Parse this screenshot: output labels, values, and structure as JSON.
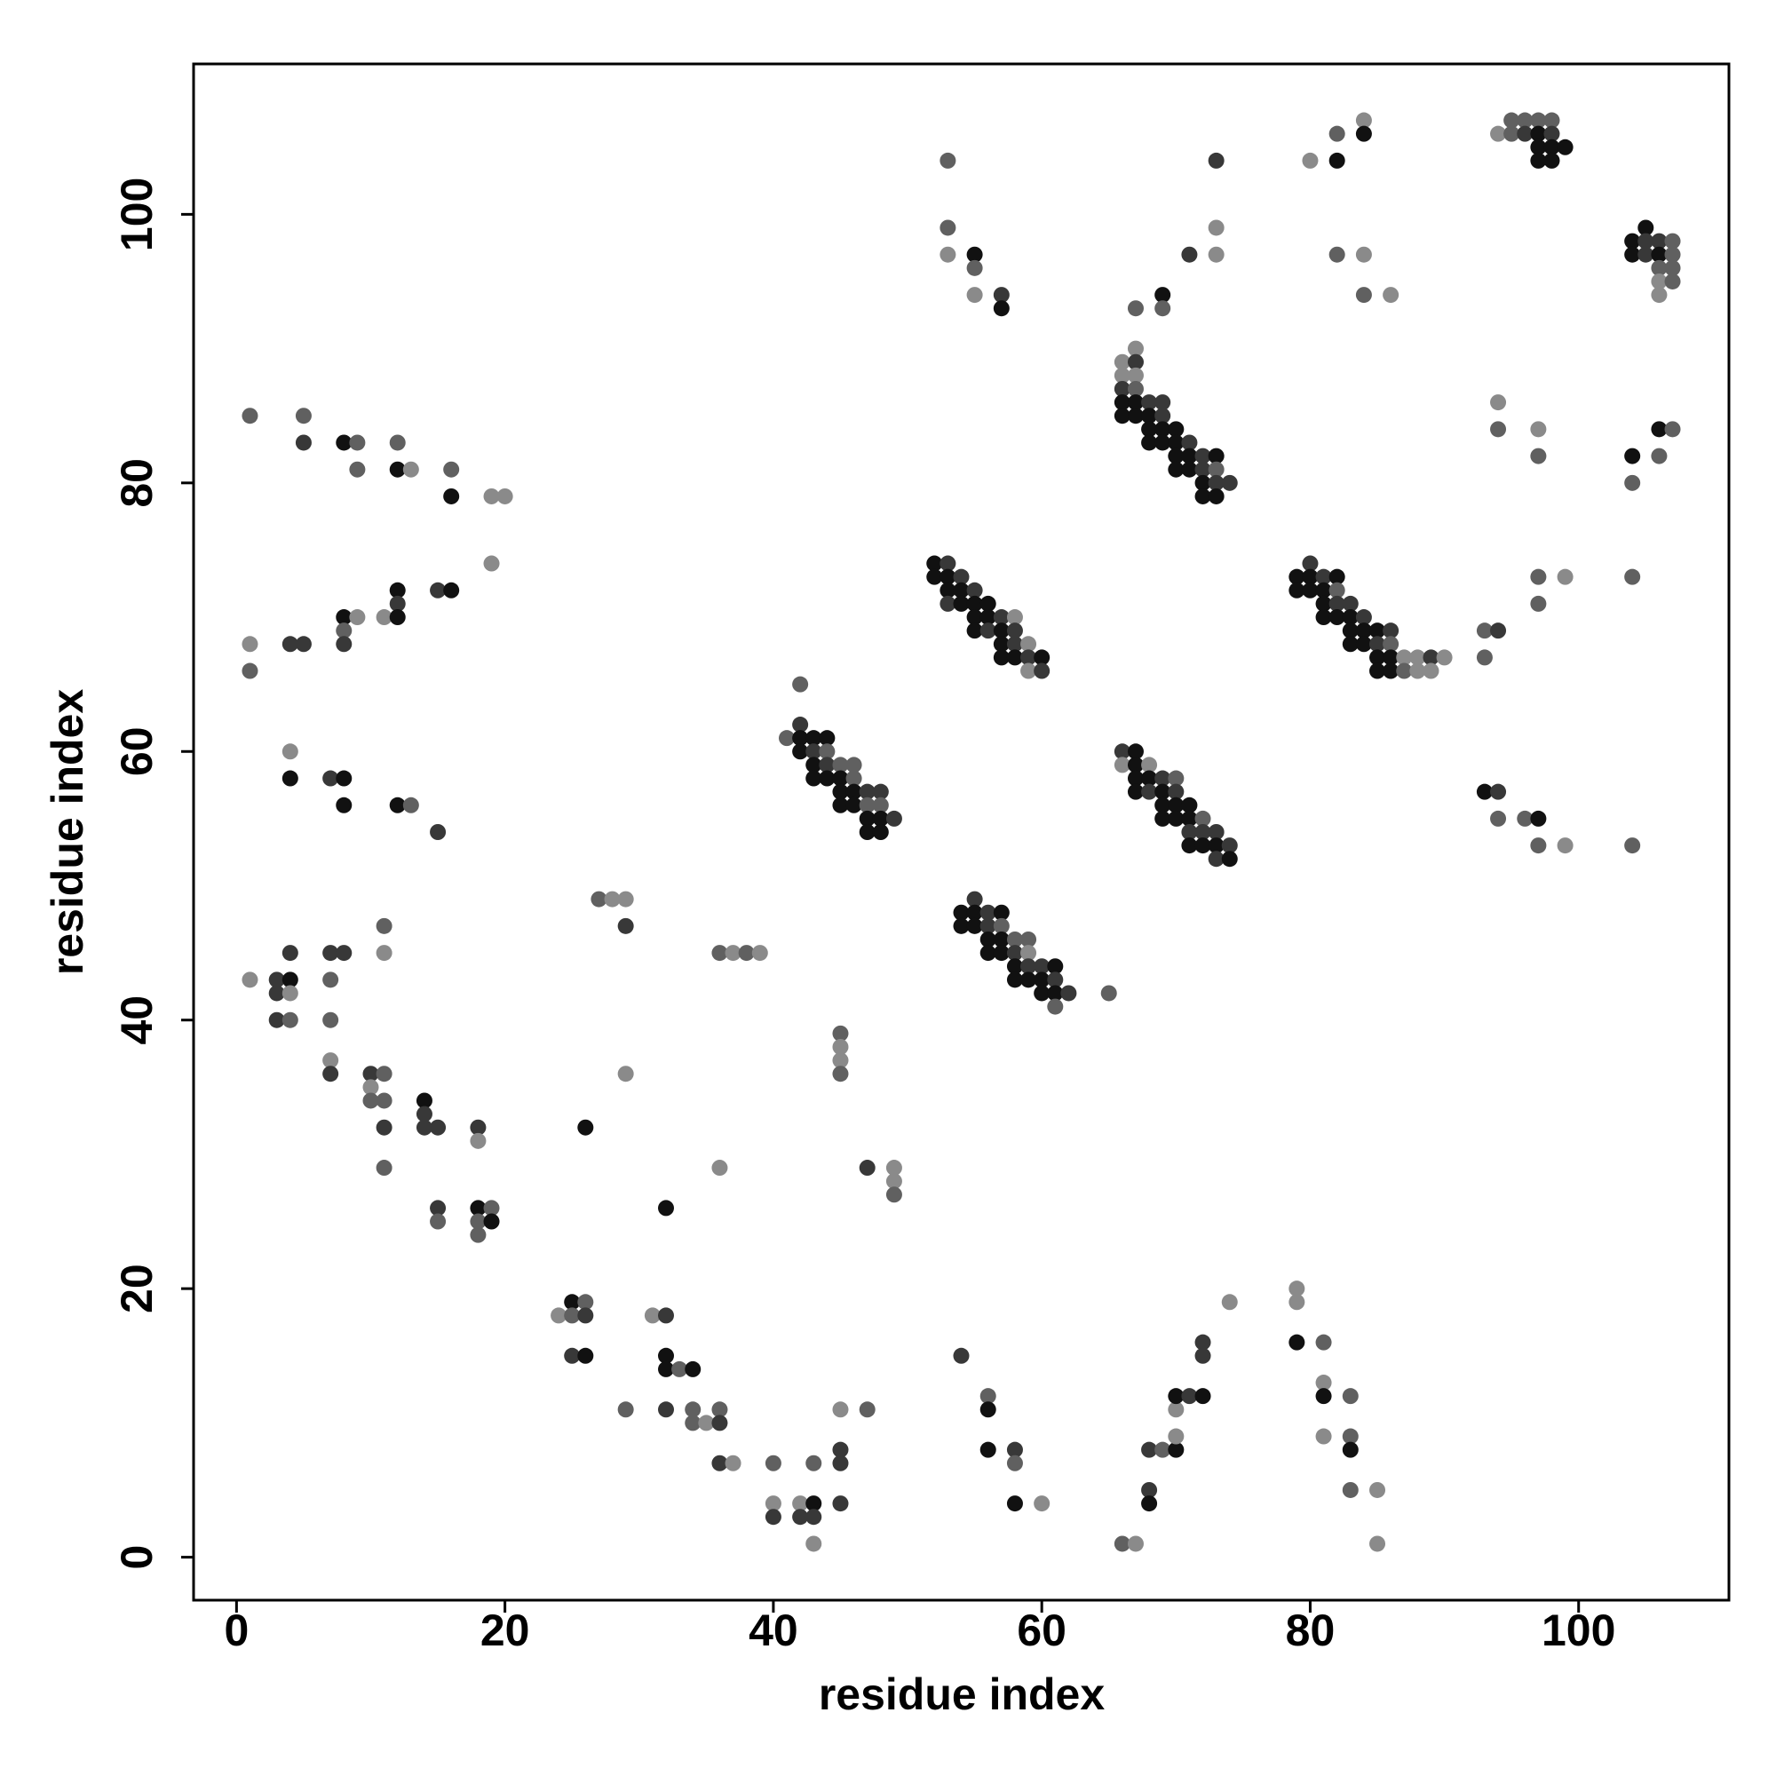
{
  "chart_data": {
    "type": "scatter",
    "x_label": "residue index",
    "y_label": "residue index",
    "xlim": [
      -3.2,
      111.2
    ],
    "ylim": [
      -3.2,
      111.2
    ],
    "xticks": [
      0,
      20,
      40,
      60,
      80,
      100
    ],
    "yticks": [
      0,
      20,
      40,
      60,
      80,
      100
    ],
    "grid": false,
    "x": [
      1,
      3,
      3,
      3,
      4,
      4,
      4,
      4,
      7,
      7,
      7,
      8,
      7,
      7,
      10,
      10,
      10,
      11,
      11,
      11,
      11,
      14,
      14,
      14,
      15,
      15,
      15,
      18,
      18,
      18,
      18,
      18,
      19,
      19,
      11,
      11,
      1,
      5,
      5,
      8,
      9,
      9,
      12,
      12,
      13,
      16,
      16,
      19,
      20,
      19,
      1,
      1,
      4,
      5,
      8,
      8,
      8,
      9,
      11,
      12,
      12,
      12,
      15,
      16,
      4,
      4,
      7,
      8,
      8,
      12,
      13,
      15,
      27,
      28,
      29,
      29,
      36,
      37,
      38,
      39,
      45,
      45,
      45,
      45,
      29,
      26,
      36,
      47,
      49,
      49,
      49,
      32,
      24,
      25,
      25,
      26,
      26,
      25,
      26,
      31,
      32,
      32,
      32,
      33,
      34,
      29,
      32,
      34,
      34,
      35,
      36,
      36,
      36,
      37,
      40,
      40,
      40,
      42,
      42,
      43,
      43,
      43,
      43,
      45,
      45,
      45,
      45,
      47,
      54,
      56,
      56,
      56,
      58,
      58,
      58,
      60,
      66,
      67,
      68,
      68,
      68,
      69,
      70,
      70,
      70,
      70,
      71,
      72,
      72,
      72,
      74,
      79,
      79,
      79,
      81,
      81,
      81,
      81,
      83,
      83,
      83,
      83,
      85,
      85,
      41,
      42,
      42,
      42,
      42,
      43,
      43,
      43,
      43,
      44,
      44,
      44,
      44,
      45,
      45,
      45,
      45,
      46,
      46,
      46,
      46,
      47,
      47,
      47,
      47,
      48,
      48,
      48,
      48,
      49,
      52,
      52,
      53,
      53,
      53,
      53,
      54,
      54,
      54,
      55,
      55,
      55,
      55,
      56,
      56,
      56,
      57,
      57,
      57,
      57,
      58,
      58,
      58,
      58,
      59,
      59,
      59,
      60,
      60,
      54,
      54,
      55,
      55,
      55,
      56,
      56,
      56,
      56,
      57,
      57,
      57,
      57,
      58,
      58,
      58,
      58,
      59,
      59,
      59,
      59,
      60,
      60,
      60,
      61,
      61,
      61,
      61,
      62,
      65,
      66,
      66,
      67,
      67,
      67,
      67,
      68,
      68,
      68,
      69,
      69,
      69,
      69,
      70,
      70,
      70,
      70,
      71,
      71,
      71,
      71,
      72,
      72,
      72,
      73,
      73,
      73,
      74,
      74,
      66,
      66,
      66,
      66,
      66,
      67,
      67,
      67,
      67,
      67,
      67,
      68,
      68,
      68,
      68,
      69,
      69,
      69,
      69,
      70,
      70,
      70,
      70,
      71,
      71,
      71,
      72,
      72,
      72,
      72,
      73,
      73,
      73,
      73,
      74,
      79,
      79,
      80,
      80,
      80,
      81,
      81,
      81,
      81,
      82,
      82,
      82,
      82,
      83,
      83,
      83,
      83,
      84,
      84,
      84,
      85,
      85,
      85,
      85,
      86,
      86,
      86,
      86,
      87,
      87,
      88,
      88,
      89,
      89,
      90,
      93,
      94,
      93,
      53,
      53,
      53,
      55,
      55,
      55,
      57,
      57,
      67,
      69,
      69,
      71,
      73,
      73,
      73,
      80,
      82,
      82,
      84,
      84,
      82,
      84,
      84,
      86,
      94,
      95,
      95,
      96,
      96,
      97,
      97,
      97,
      97,
      98,
      98,
      98,
      98,
      99,
      104,
      104,
      105,
      105,
      105,
      106,
      106,
      106,
      106,
      106,
      107,
      107,
      107,
      107,
      94,
      94,
      97,
      97,
      104,
      104,
      106,
      106,
      107,
      97,
      99,
      97,
      104,
      93,
      94,
      94,
      96,
      97,
      97,
      99,
      104
    ],
    "y": [
      43,
      43,
      42,
      40,
      43,
      42,
      45,
      40,
      45,
      43,
      40,
      45,
      37,
      36,
      36,
      35,
      34,
      36,
      34,
      32,
      29,
      34,
      33,
      32,
      32,
      26,
      25,
      32,
      31,
      26,
      25,
      24,
      26,
      25,
      47,
      45,
      85,
      85,
      83,
      83,
      83,
      81,
      83,
      81,
      81,
      81,
      79,
      79,
      79,
      74,
      68,
      66,
      68,
      68,
      70,
      69,
      68,
      70,
      70,
      72,
      71,
      70,
      72,
      72,
      60,
      58,
      58,
      58,
      56,
      56,
      56,
      54,
      49,
      49,
      49,
      47,
      45,
      45,
      45,
      45,
      39,
      38,
      37,
      36,
      36,
      32,
      29,
      29,
      29,
      28,
      27,
      26,
      18,
      19,
      18,
      19,
      18,
      15,
      15,
      18,
      18,
      15,
      14,
      14,
      14,
      11,
      11,
      11,
      10,
      10,
      11,
      10,
      7,
      7,
      7,
      4,
      3,
      4,
      3,
      4,
      3,
      1,
      7,
      8,
      7,
      4,
      11,
      11,
      15,
      12,
      11,
      8,
      8,
      7,
      4,
      4,
      1,
      1,
      5,
      4,
      8,
      8,
      8,
      9,
      11,
      12,
      12,
      12,
      16,
      15,
      19,
      20,
      19,
      16,
      16,
      13,
      12,
      9,
      12,
      9,
      8,
      5,
      5,
      1,
      61,
      65,
      62,
      61,
      60,
      61,
      60,
      59,
      58,
      61,
      60,
      59,
      58,
      59,
      58,
      57,
      56,
      59,
      58,
      57,
      56,
      57,
      56,
      55,
      54,
      57,
      56,
      55,
      54,
      55,
      74,
      73,
      74,
      73,
      72,
      71,
      73,
      72,
      71,
      72,
      71,
      70,
      69,
      71,
      70,
      69,
      70,
      69,
      68,
      67,
      70,
      69,
      68,
      67,
      68,
      67,
      66,
      67,
      66,
      48,
      47,
      49,
      48,
      47,
      48,
      47,
      46,
      45,
      48,
      47,
      46,
      45,
      46,
      45,
      44,
      43,
      46,
      45,
      44,
      43,
      44,
      43,
      42,
      44,
      43,
      42,
      41,
      42,
      42,
      60,
      59,
      60,
      59,
      58,
      57,
      59,
      58,
      57,
      58,
      57,
      56,
      55,
      58,
      57,
      56,
      55,
      56,
      55,
      54,
      53,
      55,
      54,
      53,
      54,
      53,
      52,
      53,
      52,
      89,
      88,
      87,
      86,
      85,
      90,
      89,
      88,
      87,
      86,
      85,
      86,
      85,
      84,
      83,
      86,
      85,
      84,
      83,
      84,
      83,
      82,
      81,
      83,
      82,
      81,
      82,
      81,
      80,
      79,
      82,
      81,
      80,
      79,
      80,
      73,
      72,
      74,
      73,
      72,
      73,
      72,
      71,
      70,
      73,
      72,
      71,
      70,
      71,
      70,
      69,
      68,
      70,
      69,
      68,
      69,
      68,
      67,
      66,
      69,
      68,
      67,
      66,
      67,
      66,
      67,
      66,
      67,
      66,
      67,
      69,
      69,
      67,
      104,
      99,
      97,
      97,
      96,
      94,
      94,
      93,
      93,
      94,
      93,
      97,
      99,
      97,
      104,
      104,
      106,
      104,
      107,
      106,
      97,
      97,
      94,
      94,
      106,
      107,
      106,
      107,
      106,
      107,
      106,
      105,
      104,
      107,
      106,
      105,
      104,
      105,
      98,
      97,
      99,
      98,
      97,
      98,
      97,
      96,
      95,
      94,
      98,
      97,
      96,
      95,
      86,
      84,
      84,
      82,
      82,
      80,
      84,
      82,
      84,
      73,
      73,
      71,
      73,
      57,
      57,
      55,
      55,
      55,
      53,
      53,
      53
    ],
    "colors": [
      "#8a8a8a",
      "#383838",
      "#383838",
      "#383838",
      "#111",
      "#8a8a8a",
      "#383838",
      "#606060",
      "#383838",
      "#606060",
      "#606060",
      "#383838",
      "#8a8a8a",
      "#383838",
      "#383838",
      "#8a8a8a",
      "#606060",
      "#606060",
      "#606060",
      "#383838",
      "#606060",
      "#111",
      "#383838",
      "#383838",
      "#383838",
      "#383838",
      "#606060",
      "#383838",
      "#8a8a8a",
      "#111",
      "#606060",
      "#606060",
      "#606060",
      "#111",
      "#606060",
      "#8a8a8a",
      "#606060",
      "#606060",
      "#383838",
      "#111",
      "#606060",
      "#606060",
      "#606060",
      "#111",
      "#8a8a8a",
      "#606060",
      "#111",
      "#8a8a8a",
      "#8a8a8a",
      "#8a8a8a",
      "#8a8a8a",
      "#606060",
      "#383838",
      "#383838",
      "#111",
      "#606060",
      "#383838",
      "#8a8a8a",
      "#8a8a8a",
      "#111",
      "#383838",
      "#111",
      "#383838",
      "#111",
      "#8a8a8a",
      "#111",
      "#383838",
      "#111",
      "#111",
      "#111",
      "#606060",
      "#383838",
      "#606060",
      "#8a8a8a",
      "#8a8a8a",
      "#383838",
      "#606060",
      "#8a8a8a",
      "#606060",
      "#8a8a8a",
      "#606060",
      "#8a8a8a",
      "#8a8a8a",
      "#606060",
      "#8a8a8a",
      "#111",
      "#8a8a8a",
      "#383838",
      "#8a8a8a",
      "#8a8a8a",
      "#606060",
      "#111",
      "#8a8a8a",
      "#111",
      "#606060",
      "#606060",
      "#383838",
      "#383838",
      "#111",
      "#8a8a8a",
      "#383838",
      "#111",
      "#111",
      "#606060",
      "#111",
      "#606060",
      "#383838",
      "#606060",
      "#606060",
      "#8a8a8a",
      "#606060",
      "#383838",
      "#383838",
      "#8a8a8a",
      "#606060",
      "#8a8a8a",
      "#383838",
      "#8a8a8a",
      "#383838",
      "#111",
      "#383838",
      "#8a8a8a",
      "#606060",
      "#383838",
      "#383838",
      "#383838",
      "#8a8a8a",
      "#606060",
      "#383838",
      "#606060",
      "#111",
      "#111",
      "#383838",
      "#606060",
      "#111",
      "#8a8a8a",
      "#606060",
      "#8a8a8a",
      "#383838",
      "#111",
      "#383838",
      "#606060",
      "#111",
      "#8a8a8a",
      "#8a8a8a",
      "#111",
      "#383838",
      "#111",
      "#383838",
      "#383838",
      "#8a8a8a",
      "#8a8a8a",
      "#8a8a8a",
      "#111",
      "#606060",
      "#8a8a8a",
      "#111",
      "#8a8a8a",
      "#606060",
      "#606060",
      "#111",
      "#606060",
      "#8a8a8a",
      "#8a8a8a",
      "#606060",
      "#606060",
      "#383838",
      "#111",
      "#111",
      "#111",
      "#383838",
      "#111",
      "#111",
      "#111",
      "#606060",
      "#383838",
      "#111",
      "#606060",
      "#111",
      "#111",
      "#111",
      "#606060",
      "#606060",
      "#111",
      "#111",
      "#383838",
      "#606060",
      "#111",
      "#111",
      "#383838",
      "#606060",
      "#111",
      "#111",
      "#383838",
      "#111",
      "#111",
      "#383838",
      "#111",
      "#111",
      "#383838",
      "#383838",
      "#111",
      "#111",
      "#383838",
      "#111",
      "#111",
      "#111",
      "#111",
      "#111",
      "#383838",
      "#383838",
      "#111",
      "#111",
      "#111",
      "#8a8a8a",
      "#383838",
      "#383838",
      "#111",
      "#8a8a8a",
      "#383838",
      "#8a8a8a",
      "#111",
      "#383838",
      "#111",
      "#111",
      "#383838",
      "#111",
      "#111",
      "#383838",
      "#383838",
      "#111",
      "#111",
      "#111",
      "#606060",
      "#111",
      "#111",
      "#606060",
      "#383838",
      "#111",
      "#111",
      "#606060",
      "#8a8a8a",
      "#383838",
      "#111",
      "#383838",
      "#111",
      "#111",
      "#111",
      "#383838",
      "#111",
      "#606060",
      "#383838",
      "#606060",
      "#383838",
      "#8a8a8a",
      "#111",
      "#111",
      "#111",
      "#111",
      "#8a8a8a",
      "#111",
      "#383838",
      "#383838",
      "#111",
      "#111",
      "#111",
      "#606060",
      "#383838",
      "#111",
      "#111",
      "#111",
      "#111",
      "#383838",
      "#111",
      "#606060",
      "#383838",
      "#111",
      "#383838",
      "#111",
      "#383838",
      "#383838",
      "#111",
      "#8a8a8a",
      "#8a8a8a",
      "#383838",
      "#111",
      "#111",
      "#8a8a8a",
      "#383838",
      "#8a8a8a",
      "#606060",
      "#111",
      "#111",
      "#383838",
      "#111",
      "#111",
      "#111",
      "#383838",
      "#383838",
      "#111",
      "#111",
      "#111",
      "#111",
      "#111",
      "#111",
      "#383838",
      "#111",
      "#111",
      "#383838",
      "#383838",
      "#111",
      "#111",
      "#111",
      "#606060",
      "#383838",
      "#111",
      "#383838",
      "#111",
      "#111",
      "#383838",
      "#111",
      "#111",
      "#383838",
      "#111",
      "#111",
      "#111",
      "#111",
      "#606060",
      "#383838",
      "#111",
      "#383838",
      "#111",
      "#111",
      "#111",
      "#383838",
      "#111",
      "#111",
      "#111",
      "#383838",
      "#111",
      "#111",
      "#383838",
      "#606060",
      "#111",
      "#111",
      "#8a8a8a",
      "#606060",
      "#8a8a8a",
      "#8a8a8a",
      "#383838",
      "#8a8a8a",
      "#8a8a8a",
      "#606060",
      "#383838",
      "#606060",
      "#606060",
      "#606060",
      "#8a8a8a",
      "#111",
      "#606060",
      "#8a8a8a",
      "#383838",
      "#111",
      "#606060",
      "#111",
      "#606060",
      "#383838",
      "#8a8a8a",
      "#8a8a8a",
      "#383838",
      "#8a8a8a",
      "#606060",
      "#111",
      "#8a8a8a",
      "#111",
      "#606060",
      "#8a8a8a",
      "#606060",
      "#8a8a8a",
      "#8a8a8a",
      "#606060",
      "#606060",
      "#606060",
      "#383838",
      "#606060",
      "#111",
      "#111",
      "#111",
      "#606060",
      "#383838",
      "#111",
      "#111",
      "#111",
      "#111",
      "#111",
      "#111",
      "#383838",
      "#383838",
      "#383838",
      "#111",
      "#606060",
      "#8a8a8a",
      "#8a8a8a",
      "#606060",
      "#606060",
      "#606060",
      "#606060",
      "#8a8a8a",
      "#606060",
      "#8a8a8a",
      "#606060",
      "#111",
      "#606060",
      "#111",
      "#606060",
      "#606060",
      "#606060",
      "#8a8a8a",
      "#606060",
      "#606060",
      "#111",
      "#383838",
      "#606060",
      "#606060",
      "#111",
      "#606060",
      "#8a8a8a",
      "#606060"
    ]
  }
}
